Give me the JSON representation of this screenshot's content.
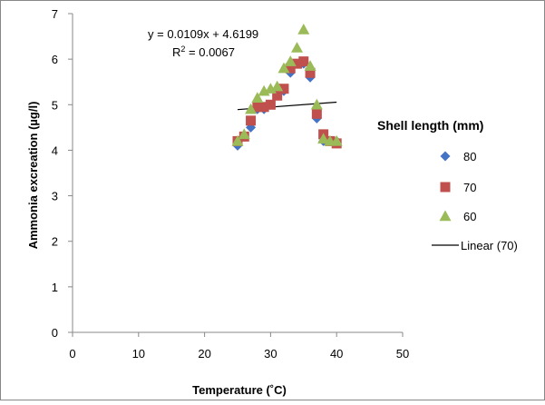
{
  "chart_data": {
    "type": "scatter",
    "title": "",
    "xlabel": "Temperature (˚C)",
    "ylabel": "Ammonia excreation (µg/l)",
    "xlim": [
      0,
      50
    ],
    "ylim": [
      0,
      7
    ],
    "x_ticks": [
      "0",
      "10",
      "20",
      "30",
      "40",
      "50"
    ],
    "y_ticks": [
      "0",
      "1",
      "2",
      "3",
      "4",
      "5",
      "6",
      "7"
    ],
    "grid": false,
    "legend": {
      "title": "Shell length (mm)",
      "position": "right"
    },
    "series": [
      {
        "name": "80",
        "marker": "diamond",
        "color": "#4472C4",
        "points": [
          [
            25,
            4.1
          ],
          [
            26,
            4.3
          ],
          [
            27,
            4.5
          ],
          [
            28,
            4.9
          ],
          [
            29,
            4.9
          ],
          [
            30,
            5.0
          ],
          [
            31,
            5.2
          ],
          [
            32,
            5.3
          ],
          [
            33,
            5.7
          ],
          [
            34,
            5.9
          ],
          [
            35,
            5.9
          ],
          [
            36,
            5.6
          ],
          [
            37,
            4.7
          ],
          [
            38,
            4.2
          ],
          [
            39,
            4.2
          ],
          [
            40,
            4.2
          ]
        ]
      },
      {
        "name": "70",
        "marker": "square",
        "color": "#C0504D",
        "points": [
          [
            25,
            4.2
          ],
          [
            26,
            4.3
          ],
          [
            27,
            4.65
          ],
          [
            28,
            4.95
          ],
          [
            29,
            4.95
          ],
          [
            30,
            5.0
          ],
          [
            31,
            5.2
          ],
          [
            32,
            5.35
          ],
          [
            33,
            5.8
          ],
          [
            34,
            5.9
          ],
          [
            35,
            5.95
          ],
          [
            36,
            5.7
          ],
          [
            37,
            4.8
          ],
          [
            38,
            4.35
          ],
          [
            39,
            4.2
          ],
          [
            40,
            4.15
          ]
        ]
      },
      {
        "name": "60",
        "marker": "triangle",
        "color": "#9BBB59",
        "points": [
          [
            25,
            4.2
          ],
          [
            26,
            4.35
          ],
          [
            27,
            4.9
          ],
          [
            28,
            5.15
          ],
          [
            29,
            5.3
          ],
          [
            30,
            5.35
          ],
          [
            31,
            5.4
          ],
          [
            32,
            5.8
          ],
          [
            33,
            5.95
          ],
          [
            34,
            6.25
          ],
          [
            35,
            6.65
          ],
          [
            36,
            5.85
          ],
          [
            37,
            5.0
          ],
          [
            38,
            4.25
          ],
          [
            39,
            4.2
          ],
          [
            40,
            4.2
          ]
        ]
      }
    ],
    "trendline": {
      "name": "Linear (70)",
      "color": "#000000",
      "slope": 0.0109,
      "intercept": 4.6199,
      "x_range": [
        25,
        40
      ],
      "equation": "y = 0.0109x + 4.6199",
      "r_squared_label": "R",
      "r_squared_sup": "2",
      "r_squared_value": " = 0.0067"
    }
  }
}
